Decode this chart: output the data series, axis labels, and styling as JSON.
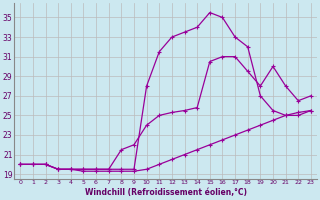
{
  "xlabel": "Windchill (Refroidissement éolien,°C)",
  "background_color": "#cce8f0",
  "line_color": "#990099",
  "grid_color": "#bbbbbb",
  "xlim": [
    -0.5,
    23.5
  ],
  "ylim": [
    18.5,
    36.5
  ],
  "yticks": [
    19,
    21,
    23,
    25,
    27,
    29,
    31,
    33,
    35
  ],
  "xticks": [
    0,
    1,
    2,
    3,
    4,
    5,
    6,
    7,
    8,
    9,
    10,
    11,
    12,
    13,
    14,
    15,
    16,
    17,
    18,
    19,
    20,
    21,
    22,
    23
  ],
  "line1_x": [
    0,
    1,
    2,
    3,
    4,
    5,
    6,
    7,
    8,
    9,
    10,
    11,
    12,
    13,
    14,
    15,
    16,
    17,
    18,
    19,
    20,
    21,
    22,
    23
  ],
  "line1_y": [
    20.0,
    20.0,
    20.0,
    19.5,
    19.5,
    19.3,
    19.3,
    19.3,
    19.3,
    19.3,
    19.5,
    20.0,
    20.5,
    21.0,
    21.5,
    22.0,
    22.5,
    23.0,
    23.5,
    24.0,
    24.5,
    25.0,
    25.3,
    25.5
  ],
  "line2_x": [
    0,
    1,
    2,
    3,
    4,
    5,
    6,
    7,
    8,
    9,
    10,
    11,
    12,
    13,
    14,
    15,
    16,
    17,
    18,
    19,
    20,
    21,
    22,
    23
  ],
  "line2_y": [
    20.0,
    20.0,
    20.0,
    19.5,
    19.5,
    19.5,
    19.5,
    19.5,
    21.5,
    22.0,
    24.0,
    25.0,
    25.3,
    25.5,
    25.8,
    30.5,
    31.0,
    31.0,
    29.5,
    28.0,
    30.0,
    28.0,
    26.5,
    27.0
  ],
  "line3_x": [
    0,
    1,
    2,
    3,
    4,
    5,
    6,
    7,
    8,
    9,
    10,
    11,
    12,
    13,
    14,
    15,
    16,
    17,
    18,
    19,
    20,
    21,
    22,
    23
  ],
  "line3_y": [
    20.0,
    20.0,
    20.0,
    19.5,
    19.5,
    19.5,
    19.5,
    19.5,
    19.5,
    19.5,
    28.0,
    31.5,
    33.0,
    33.5,
    34.0,
    35.5,
    35.0,
    33.0,
    32.0,
    27.0,
    25.5,
    25.0,
    25.0,
    25.5
  ]
}
